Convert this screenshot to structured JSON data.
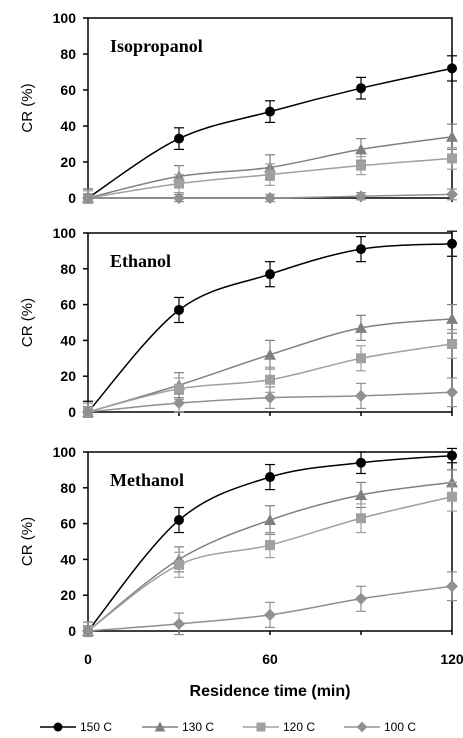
{
  "chart_data": [
    {
      "type": "line",
      "title": "Isopropanol",
      "ylabel": "CR (%)",
      "xlabel": "",
      "x": [
        0,
        30,
        60,
        90,
        120
      ],
      "xlim": [
        0,
        120
      ],
      "ylim": [
        0,
        100
      ],
      "yticks": [
        0,
        20,
        40,
        60,
        80,
        100
      ],
      "xticks": [],
      "series": [
        {
          "name": "150C",
          "marker": "circle",
          "color": "#000000",
          "values": [
            0,
            33,
            48,
            61,
            72
          ],
          "errors": [
            5,
            6,
            6,
            6,
            7
          ]
        },
        {
          "name": "130C",
          "marker": "triangle",
          "color": "#808080",
          "values": [
            0,
            12,
            17,
            27,
            34
          ],
          "errors": [
            5,
            6,
            7,
            6,
            7
          ]
        },
        {
          "name": "120C",
          "marker": "square",
          "color": "#a0a0a0",
          "values": [
            0,
            8,
            13,
            18,
            22
          ],
          "errors": [
            4,
            5,
            6,
            5,
            6
          ]
        },
        {
          "name": "100C",
          "marker": "diamond",
          "color": "#909090",
          "values": [
            0,
            0,
            0,
            1,
            2
          ],
          "errors": [
            2,
            2,
            2,
            2,
            3
          ]
        }
      ]
    },
    {
      "type": "line",
      "title": "Ethanol",
      "ylabel": "CR (%)",
      "xlabel": "",
      "x": [
        0,
        30,
        60,
        90,
        120
      ],
      "xlim": [
        0,
        120
      ],
      "ylim": [
        0,
        100
      ],
      "yticks": [
        0,
        20,
        40,
        60,
        80,
        100
      ],
      "xticks": [],
      "series": [
        {
          "name": "150C",
          "marker": "circle",
          "color": "#000000",
          "values": [
            0,
            57,
            77,
            91,
            94
          ],
          "errors": [
            6,
            7,
            7,
            7,
            7
          ]
        },
        {
          "name": "130C",
          "marker": "triangle",
          "color": "#808080",
          "values": [
            0,
            15,
            32,
            47,
            52
          ],
          "errors": [
            5,
            7,
            8,
            7,
            8
          ]
        },
        {
          "name": "120C",
          "marker": "square",
          "color": "#a0a0a0",
          "values": [
            0,
            13,
            18,
            30,
            38
          ],
          "errors": [
            5,
            6,
            7,
            7,
            8
          ]
        },
        {
          "name": "100C",
          "marker": "diamond",
          "color": "#909090",
          "values": [
            0,
            5,
            8,
            9,
            11
          ],
          "errors": [
            3,
            5,
            6,
            7,
            8
          ]
        }
      ]
    },
    {
      "type": "line",
      "title": "Methanol",
      "ylabel": "CR (%)",
      "xlabel": "Residence time (min)",
      "x": [
        0,
        30,
        60,
        90,
        120
      ],
      "xlim": [
        0,
        120
      ],
      "ylim": [
        0,
        100
      ],
      "yticks": [
        0,
        20,
        40,
        60,
        80,
        100
      ],
      "xticks": [
        0,
        60,
        120
      ],
      "series": [
        {
          "name": "150C",
          "marker": "circle",
          "color": "#000000",
          "values": [
            0,
            62,
            86,
            94,
            98
          ],
          "errors": [
            5,
            7,
            7,
            6,
            4
          ]
        },
        {
          "name": "130C",
          "marker": "triangle",
          "color": "#808080",
          "values": [
            0,
            40,
            62,
            76,
            83
          ],
          "errors": [
            5,
            7,
            8,
            7,
            7
          ]
        },
        {
          "name": "120C",
          "marker": "square",
          "color": "#a0a0a0",
          "values": [
            0,
            37,
            48,
            63,
            75
          ],
          "errors": [
            5,
            7,
            7,
            8,
            8
          ]
        },
        {
          "name": "100C",
          "marker": "diamond",
          "color": "#909090",
          "values": [
            0,
            4,
            9,
            18,
            25
          ],
          "errors": [
            3,
            6,
            7,
            7,
            8
          ]
        }
      ]
    }
  ],
  "legend": [
    {
      "name": "150 C",
      "marker": "circle",
      "color": "#000000"
    },
    {
      "name": "130 C",
      "marker": "triangle",
      "color": "#808080"
    },
    {
      "name": "120 C",
      "marker": "square",
      "color": "#a0a0a0"
    },
    {
      "name": "100 C",
      "marker": "diamond",
      "color": "#909090"
    }
  ]
}
